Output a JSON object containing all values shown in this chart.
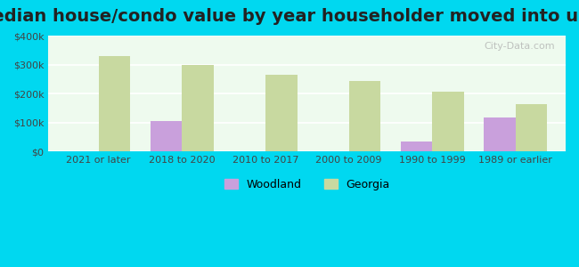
{
  "title": "Median house/condo value by year householder moved into unit",
  "categories": [
    "2021 or later",
    "2018 to 2020",
    "2010 to 2017",
    "2000 to 2009",
    "1990 to 1999",
    "1989 or earlier"
  ],
  "woodland_values": [
    null,
    105000,
    null,
    null,
    33000,
    118000
  ],
  "georgia_values": [
    328000,
    298000,
    265000,
    243000,
    207000,
    162000
  ],
  "woodland_color": "#c9a0dc",
  "georgia_color": "#c8d9a0",
  "background_outer": "#00d8f0",
  "background_inner": "#eefaee",
  "ylim": [
    0,
    400000
  ],
  "yticks": [
    0,
    100000,
    200000,
    300000,
    400000
  ],
  "ytick_labels": [
    "$0",
    "$100k",
    "$200k",
    "$300k",
    "$400k"
  ],
  "bar_width": 0.38,
  "title_fontsize": 14,
  "watermark": "City-Data.com"
}
